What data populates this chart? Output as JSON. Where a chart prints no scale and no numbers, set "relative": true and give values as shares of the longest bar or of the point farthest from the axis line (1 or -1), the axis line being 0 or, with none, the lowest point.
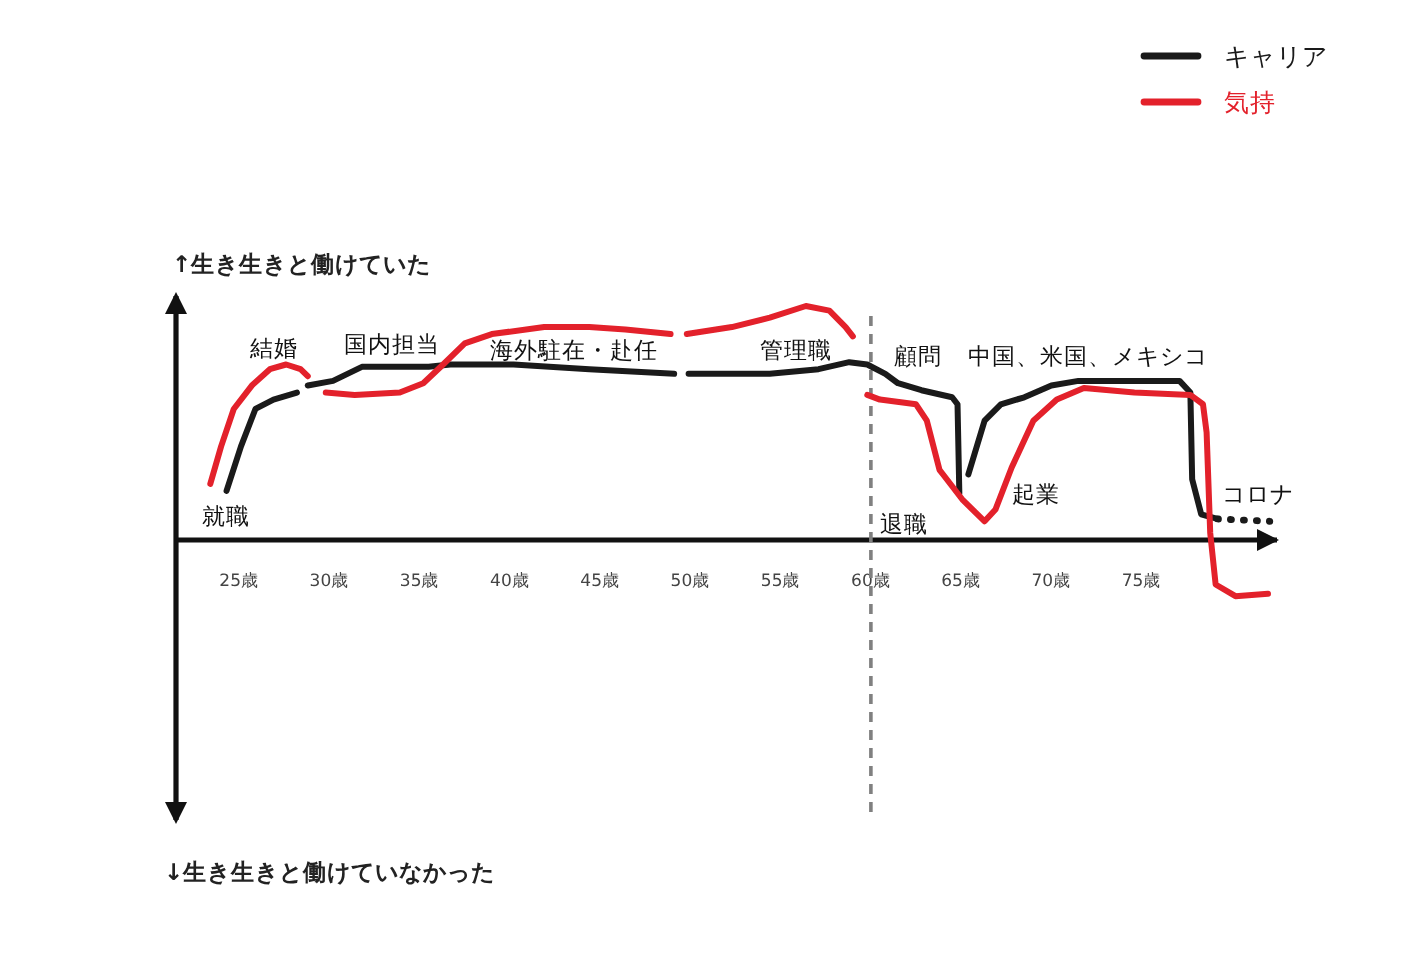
{
  "chart_data": {
    "type": "line",
    "relative": true,
    "xlim": [
      21.5,
      82.5
    ],
    "xticks": [
      {
        "value": 25,
        "label": "25歳"
      },
      {
        "value": 30,
        "label": "30歳"
      },
      {
        "value": 35,
        "label": "35歳"
      },
      {
        "value": 40,
        "label": "40歳"
      },
      {
        "value": 45,
        "label": "45歳"
      },
      {
        "value": 50,
        "label": "50歳"
      },
      {
        "value": 55,
        "label": "55歳"
      },
      {
        "value": 60,
        "label": "60歳"
      },
      {
        "value": 65,
        "label": "65歳"
      },
      {
        "value": 70,
        "label": "70歳"
      },
      {
        "value": 75,
        "label": "75歳"
      }
    ],
    "ref_lines": [
      {
        "axis": "x",
        "value": 60,
        "color": "#808080",
        "line_style": "dashed"
      }
    ],
    "legend": "top right",
    "series": [
      {
        "name": "キャリア",
        "color": "#1a1a1a",
        "x": [
          24.3,
          25.1,
          25.9,
          26.9,
          28.2,
          null,
          28.8,
          30.2,
          31.8,
          33.5,
          35.5,
          36.7,
          40.2,
          44.4,
          49.1,
          null,
          49.9,
          54.4,
          57.1,
          58.8,
          59.8,
          60.8,
          61.5,
          62.8,
          64.5,
          64.8,
          64.9,
          null,
          65.4,
          66.3,
          67.2,
          68.5,
          70.0,
          71.5,
          74.6,
          77.1,
          77.7,
          77.8,
          78.3,
          79.2
        ],
        "values": [
          0.21,
          0.4,
          0.56,
          0.6,
          0.63,
          null,
          0.66,
          0.68,
          0.74,
          0.74,
          0.74,
          0.75,
          0.75,
          0.73,
          0.71,
          null,
          0.71,
          0.71,
          0.73,
          0.76,
          0.75,
          0.71,
          0.67,
          0.64,
          0.61,
          0.58,
          0.2,
          null,
          0.28,
          0.51,
          0.58,
          0.61,
          0.66,
          0.68,
          0.68,
          0.68,
          0.63,
          0.26,
          0.11,
          0.09
        ]
      },
      {
        "name": "気持",
        "color": "#e3212b",
        "x": [
          23.4,
          24.0,
          24.7,
          25.7,
          26.7,
          27.6,
          28.4,
          28.8,
          null,
          29.8,
          31.4,
          33.9,
          35.2,
          36.3,
          37.5,
          39.0,
          41.9,
          44.4,
          46.4,
          48.9,
          null,
          49.8,
          52.3,
          54.4,
          56.4,
          57.7,
          58.6,
          59.0,
          null,
          59.8,
          60.5,
          62.5,
          63.1,
          63.8,
          64.0,
          65.1,
          66.3,
          66.9,
          67.8,
          69.0,
          70.3,
          71.8,
          74.6,
          77.7,
          78.4,
          78.6,
          78.8,
          79.1,
          80.2,
          82.0
        ],
        "values": [
          0.24,
          0.4,
          0.56,
          0.66,
          0.73,
          0.75,
          0.73,
          0.7,
          null,
          0.63,
          0.62,
          0.63,
          0.67,
          0.75,
          0.84,
          0.88,
          0.91,
          0.91,
          0.9,
          0.88,
          null,
          0.88,
          0.91,
          0.95,
          1,
          0.98,
          0.91,
          0.87,
          null,
          0.62,
          0.6,
          0.58,
          0.51,
          0.3,
          0.28,
          0.17,
          0.08,
          0.13,
          0.31,
          0.51,
          0.6,
          0.65,
          0.63,
          0.62,
          0.58,
          0.46,
          0.03,
          -0.19,
          -0.24,
          -0.23
        ]
      },
      {
        "color": "#1a1a1a",
        "line_style": "dotted",
        "x": [
          79.2,
          82.1
        ],
        "values": [
          0.09,
          0.08
        ]
      }
    ],
    "annotations": [
      "↑生き生きと働けていた",
      "↓生き生きと働けていなかった",
      "就職",
      "結婚",
      "国内担当",
      "海外駐在・赴任",
      "管理職",
      "顧問",
      "退職",
      "起業",
      "中国、米国、メキシコ",
      "コロナ"
    ]
  }
}
